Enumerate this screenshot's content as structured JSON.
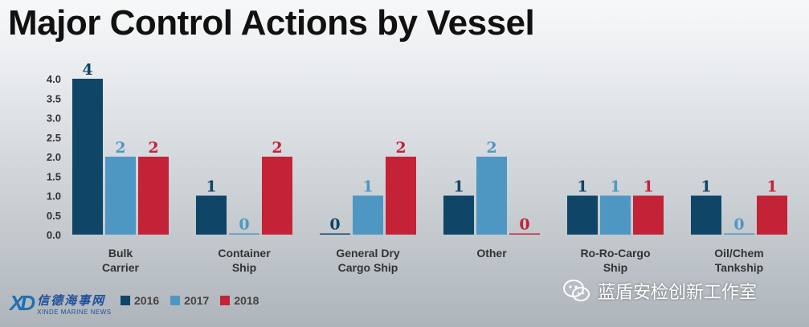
{
  "header": {
    "title": "Major Control Actions by Vessel"
  },
  "chart_data": {
    "type": "bar",
    "title": "Major Control Actions by Vessel",
    "categories": [
      [
        "Bulk",
        "Carrier"
      ],
      [
        "Container",
        "Ship"
      ],
      [
        "General Dry",
        "Cargo Ship"
      ],
      [
        "Other"
      ],
      [
        "Ro-Ro-Cargo",
        "Ship"
      ],
      [
        "Oil/Chem",
        "Tankship"
      ]
    ],
    "series": [
      {
        "name": "2016",
        "color": "#0f4566",
        "values": [
          4,
          1,
          0,
          1,
          1,
          1
        ]
      },
      {
        "name": "2017",
        "color": "#4f97c3",
        "values": [
          2,
          0,
          1,
          2,
          1,
          0
        ]
      },
      {
        "name": "2018",
        "color": "#c42236",
        "values": [
          2,
          2,
          2,
          0,
          1,
          1
        ]
      }
    ],
    "yticks": [
      "0.0",
      "0.5",
      "1.0",
      "1.5",
      "2.0",
      "2.5",
      "3.0",
      "3.5",
      "4.0"
    ],
    "ylim": [
      0,
      4
    ],
    "xlabel": "",
    "ylabel": "",
    "legend_position": "bottom-left",
    "grid": false
  },
  "logo": {
    "mark": "XD",
    "name_cn": "信德海事网",
    "name_en": "XINDE MARINE NEWS"
  },
  "watermark": {
    "text": "蓝盾安检创新工作室",
    "icon": "wechat-icon"
  }
}
